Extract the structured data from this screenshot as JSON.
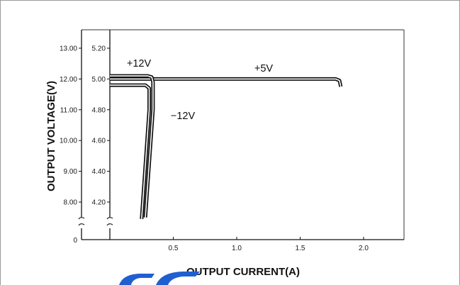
{
  "chart_data": {
    "type": "line",
    "title": "",
    "xlabel": "OUTPUT CURRENT(A)",
    "ylabel": "OUTPUT VOLTAGE(V)",
    "x_ticks": [
      "0.5",
      "1.0",
      "1.5",
      "2.0"
    ],
    "x_tick_values": [
      0.5,
      1.0,
      1.5,
      2.0
    ],
    "y_ticks_outer": [
      "13.00",
      "12.00",
      "11.00",
      "10.00",
      "9.00",
      "8.00"
    ],
    "y_ticks_inner": [
      "5.20",
      "5.00",
      "4.80",
      "4.60",
      "4.40",
      "4.20"
    ],
    "origin_label": "0",
    "xlim": [
      0,
      2.3
    ],
    "ylim_outer": [
      7.5,
      13.3
    ],
    "ylim_inner": [
      4.1,
      5.26
    ],
    "grid": false,
    "legend": "none",
    "series": [
      {
        "name": "+5V",
        "axis": "inner",
        "x": [
          0.0,
          1.5,
          1.78,
          1.81,
          1.82
        ],
        "y": [
          5.0,
          5.0,
          5.0,
          4.99,
          4.95
        ]
      },
      {
        "name": "+12V",
        "axis": "outer",
        "x": [
          0.0,
          0.2,
          0.3,
          0.33,
          0.34,
          0.34,
          0.28
        ],
        "y": [
          12.1,
          12.1,
          12.1,
          12.06,
          11.9,
          11.0,
          7.5
        ]
      },
      {
        "name": "-12V",
        "axis": "outer",
        "x": [
          0.0,
          0.2,
          0.28,
          0.31,
          0.31,
          0.25
        ],
        "y": [
          11.8,
          11.8,
          11.8,
          11.7,
          11.0,
          7.45
        ]
      }
    ],
    "series_label_text": {
      "+12V": "+12V",
      "+5V": "+5V",
      "-12V": "−12V"
    }
  }
}
